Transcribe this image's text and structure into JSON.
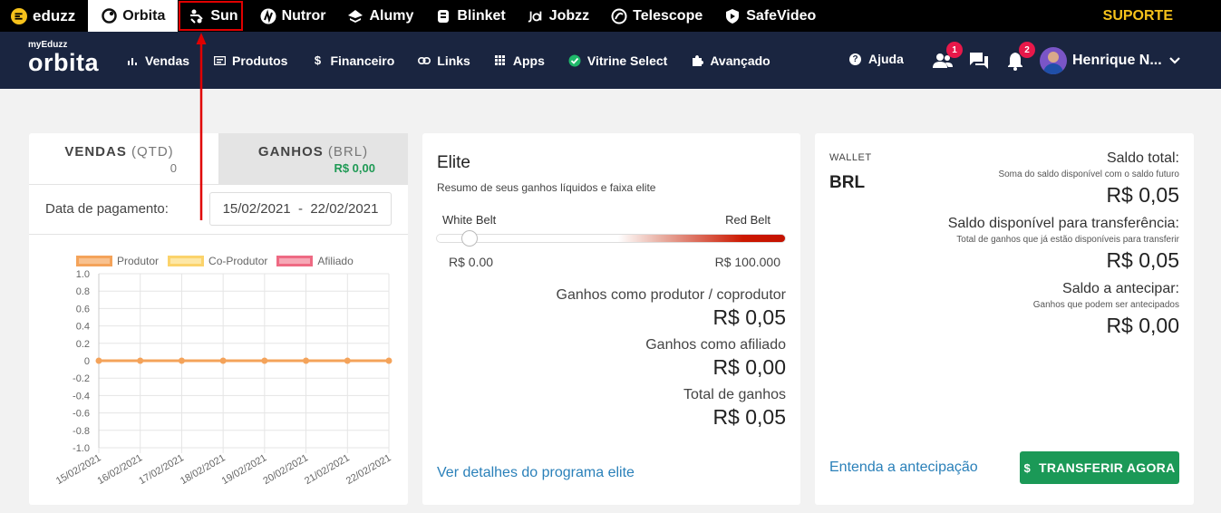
{
  "topbar": {
    "brand": "eduzz",
    "items": [
      {
        "label": "Orbita",
        "icon": "orbita-icon"
      },
      {
        "label": "Sun",
        "icon": "sun-icon"
      },
      {
        "label": "Nutror",
        "icon": "nutror-icon"
      },
      {
        "label": "Alumy",
        "icon": "alumy-icon"
      },
      {
        "label": "Blinket",
        "icon": "blinket-icon"
      },
      {
        "label": "Jobzz",
        "icon": "jobzz-icon"
      },
      {
        "label": "Telescope",
        "icon": "telescope-icon"
      },
      {
        "label": "SafeVideo",
        "icon": "safevideo-icon"
      }
    ],
    "support": "SUPORTE",
    "colors": {
      "background": "#000000",
      "support": "#f6c21b",
      "highlight": "#e00000"
    }
  },
  "navbar": {
    "logo_small": "myEduzz",
    "logo_big": "orbita",
    "items": [
      {
        "label": "Vendas",
        "icon": "chart-bars-icon"
      },
      {
        "label": "Produtos",
        "icon": "card-icon"
      },
      {
        "label": "Financeiro",
        "icon": "dollar-icon"
      },
      {
        "label": "Links",
        "icon": "link-icon"
      },
      {
        "label": "Apps",
        "icon": "grid-icon"
      },
      {
        "label": "Vitrine Select",
        "icon": "check-circle-icon"
      },
      {
        "label": "Avançado",
        "icon": "puzzle-icon"
      }
    ],
    "help": "Ajuda",
    "help_icon": "?",
    "users_badge": "1",
    "notifications_badge": "2",
    "user_name": "Henrique N...",
    "colors": {
      "background": "#1a2540",
      "badge": "#e8184a"
    }
  },
  "sales_card": {
    "tab_vendas": {
      "label": "VENDAS",
      "unit": "(QTD)",
      "value": "0"
    },
    "tab_ganhos": {
      "label": "GANHOS",
      "unit": "(BRL)",
      "value": "R$ 0,00"
    },
    "payment_label": "Data de pagamento:",
    "date_from": "15/02/2021",
    "date_separator": "-",
    "date_to": "22/02/2021",
    "legend": [
      {
        "name": "Produtor",
        "fill": "#f8c18f",
        "border": "#f4a35a"
      },
      {
        "name": "Co-Produtor",
        "fill": "#fde7a6",
        "border": "#fbd36b"
      },
      {
        "name": "Afiliado",
        "fill": "#f6a8b6",
        "border": "#ee6a83"
      }
    ]
  },
  "chart_data": {
    "type": "line",
    "x": [
      "15/02/2021",
      "16/02/2021",
      "17/02/2021",
      "18/02/2021",
      "19/02/2021",
      "20/02/2021",
      "21/02/2021",
      "22/02/2021"
    ],
    "series": [
      {
        "name": "Produtor",
        "values": [
          0,
          0,
          0,
          0,
          0,
          0,
          0,
          0
        ],
        "color": "#f4a35a"
      }
    ],
    "yticks": [
      "1.0",
      "0.8",
      "0.6",
      "0.4",
      "0.2",
      "0",
      "-0.2",
      "-0.4",
      "-0.6",
      "-0.8",
      "-1.0"
    ],
    "ylim": [
      -1.0,
      1.0
    ],
    "grid": true,
    "legend_position": "top"
  },
  "elite_card": {
    "title": "Elite",
    "subtitle": "Resumo de seus ganhos líquidos e faixa elite",
    "belt_left": "White Belt",
    "belt_right": "Red Belt",
    "range_min": "R$ 0.00",
    "range_max": "R$ 100.000",
    "progress": 0.0,
    "stats": [
      {
        "label": "Ganhos como produtor / coprodutor",
        "value": "R$ 0,05"
      },
      {
        "label": "Ganhos como afiliado",
        "value": "R$ 0,00"
      },
      {
        "label": "Total de ganhos",
        "value": "R$ 0,05"
      }
    ],
    "link": "Ver detalhes do programa elite"
  },
  "wallet_card": {
    "label": "WALLET",
    "currency": "BRL",
    "balances": [
      {
        "title": "Saldo total:",
        "subtitle": "Soma do saldo disponível com o saldo futuro",
        "value": "R$ 0,05"
      },
      {
        "title": "Saldo disponível para transferência:",
        "subtitle": "Total de ganhos que já estão disponíveis para transferir",
        "value": "R$ 0,05"
      },
      {
        "title": "Saldo a antecipar:",
        "subtitle": "Ganhos que podem ser antecipados",
        "value": "R$ 0,00"
      }
    ],
    "link": "Entenda a antecipação",
    "button_icon": "$",
    "button": "TRANSFERIR AGORA",
    "colors": {
      "button": "#1b9957",
      "link": "#2a80b9"
    }
  }
}
